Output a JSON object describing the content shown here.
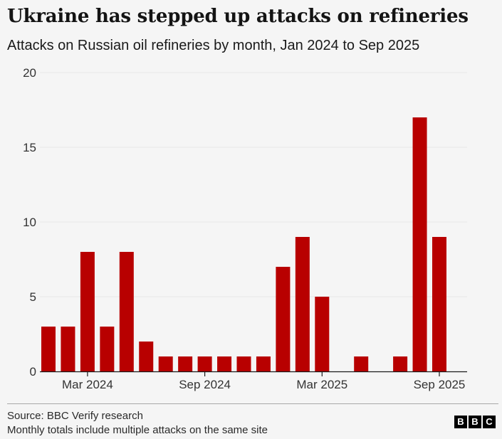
{
  "title": "Ukraine has stepped up attacks on refineries",
  "subtitle": "Attacks on Russian oil refineries by month, Jan 2024 to Sep 2025",
  "footer": {
    "source": "Source: BBC Verify research",
    "note": "Monthly totals include multiple attacks on the same site"
  },
  "logo": {
    "letters": [
      "B",
      "B",
      "C"
    ]
  },
  "colors": {
    "bar": "#b80000",
    "grid": "#e6e6e6",
    "axis": "#1a1a1a"
  },
  "chart_data": {
    "type": "bar",
    "categories": [
      "Jan 2024",
      "Feb 2024",
      "Mar 2024",
      "Apr 2024",
      "May 2024",
      "Jun 2024",
      "Jul 2024",
      "Aug 2024",
      "Sep 2024",
      "Oct 2024",
      "Nov 2024",
      "Dec 2024",
      "Jan 2025",
      "Feb 2025",
      "Mar 2025",
      "Apr 2025",
      "May 2025",
      "Jun 2025",
      "Jul 2025",
      "Aug 2025",
      "Sep 2025"
    ],
    "values": [
      3,
      3,
      8,
      3,
      8,
      2,
      1,
      1,
      1,
      1,
      1,
      1,
      7,
      9,
      5,
      0,
      1,
      0,
      1,
      17,
      9
    ],
    "x_tick_labels": [
      {
        "category": "Mar 2024",
        "label": "Mar 2024"
      },
      {
        "category": "Sep 2024",
        "label": "Sep 2024"
      },
      {
        "category": "Mar 2025",
        "label": "Mar 2025"
      },
      {
        "category": "Sep 2025",
        "label": "Sep 2025"
      }
    ],
    "y_ticks": [
      0,
      5,
      10,
      15,
      20
    ],
    "ylim": [
      0,
      20
    ],
    "xlabel": "",
    "ylabel": "",
    "grid": true,
    "legend": "none"
  }
}
